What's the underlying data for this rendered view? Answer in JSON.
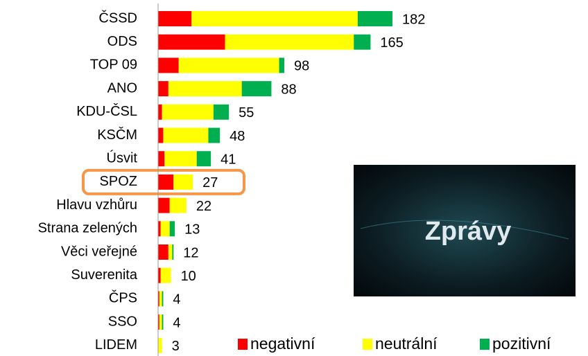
{
  "chart_data": {
    "type": "stacked_bar_horizontal",
    "categories": [
      "ČSSD",
      "ODS",
      "TOP 09",
      "ANO",
      "KDU-ČSL",
      "KSČM",
      "Úsvit",
      "SPOZ",
      "Hlavu vzhůru",
      "Strana zelených",
      "Věci veřejné",
      "Suverenita",
      "ČPS",
      "SSO",
      "LIDEM"
    ],
    "series": [
      {
        "name": "negativní",
        "color": "#ff0000",
        "values": [
          26,
          52,
          16,
          8,
          3,
          4,
          5,
          12,
          9,
          2,
          8,
          2,
          1,
          1,
          0
        ]
      },
      {
        "name": "neutrální",
        "color": "#ffff00",
        "values": [
          129,
          100,
          78,
          57,
          40,
          35,
          25,
          15,
          13,
          7,
          3,
          8,
          2,
          2,
          3
        ]
      },
      {
        "name": "pozitivní",
        "color": "#00b050",
        "values": [
          27,
          13,
          4,
          23,
          12,
          9,
          11,
          0,
          0,
          4,
          1,
          0,
          1,
          1,
          0
        ]
      }
    ],
    "totals": [
      182,
      165,
      98,
      88,
      55,
      48,
      41,
      27,
      22,
      13,
      12,
      10,
      4,
      4,
      3
    ],
    "xlim": [
      0,
      340
    ],
    "highlight": "SPOZ",
    "inset_text": "Zprávy",
    "legend": "bottom-right"
  }
}
